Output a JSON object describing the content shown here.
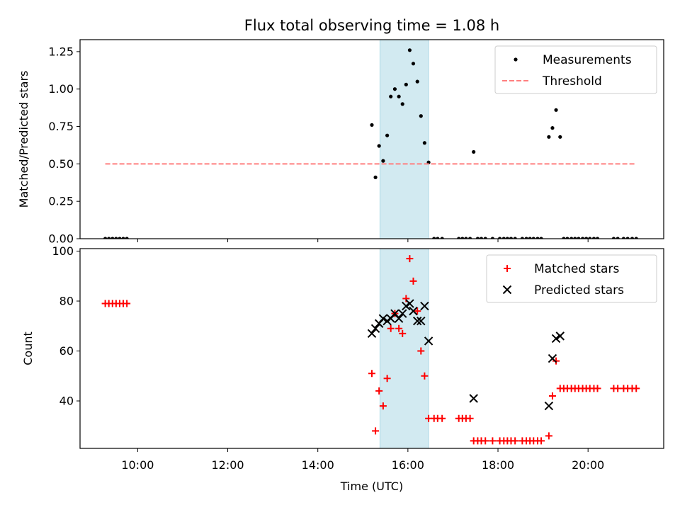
{
  "title": "Flux total observing time = 1.08 h",
  "xlabel": "Time (UTC)",
  "xticks": [
    {
      "h": 10,
      "label": "10:00"
    },
    {
      "h": 12,
      "label": "12:00"
    },
    {
      "h": 14,
      "label": "14:00"
    },
    {
      "h": 16,
      "label": "16:00"
    },
    {
      "h": 18,
      "label": "18:00"
    },
    {
      "h": 20,
      "label": "20:00"
    }
  ],
  "colors": {
    "highlight": "#add8e6",
    "measurement": "#000000",
    "threshold": "#ff7f7f",
    "matched": "#ff0000",
    "predicted": "#000000"
  },
  "chart_data": [
    {
      "type": "scatter",
      "ylabel": "Matched/Predicted stars",
      "ylim": [
        0,
        1.33
      ],
      "yticks": [
        "0.00",
        "0.25",
        "0.50",
        "0.75",
        "1.00",
        "1.25"
      ],
      "legend_placement": "top-right",
      "highlight_span": {
        "x": [
          15.38,
          16.46
        ]
      },
      "series": [
        {
          "name": "Measurements",
          "marker": "dot",
          "x": [
            9.28,
            9.36,
            9.44,
            9.52,
            9.6,
            9.68,
            9.76,
            15.2,
            15.28,
            15.36,
            15.45,
            15.54,
            15.62,
            15.71,
            15.8,
            15.88,
            15.96,
            16.04,
            16.12,
            16.21,
            16.29,
            16.37,
            16.46,
            16.58,
            16.66,
            16.76,
            17.13,
            17.21,
            17.29,
            17.38,
            17.46,
            17.55,
            17.63,
            17.72,
            17.88,
            18.04,
            18.13,
            18.21,
            18.29,
            18.38,
            18.54,
            18.63,
            18.71,
            18.79,
            18.88,
            18.96,
            19.13,
            19.21,
            19.29,
            19.38,
            19.46,
            19.54,
            19.63,
            19.71,
            19.79,
            19.88,
            19.96,
            20.04,
            20.13,
            20.21,
            20.57,
            20.66,
            20.79,
            20.88,
            20.98,
            21.07
          ],
          "y": [
            0,
            0,
            0,
            0,
            0,
            0,
            0,
            0.76,
            0.41,
            0.62,
            0.52,
            0.69,
            0.95,
            1.0,
            0.95,
            0.9,
            1.03,
            1.26,
            1.17,
            1.05,
            0.82,
            0.64,
            0.51,
            0,
            0,
            0,
            0,
            0,
            0,
            0,
            0.58,
            0,
            0,
            0,
            0,
            0,
            0,
            0,
            0,
            0,
            0,
            0,
            0,
            0,
            0,
            0,
            0.68,
            0.74,
            0.86,
            0.68,
            0,
            0,
            0,
            0,
            0,
            0,
            0,
            0,
            0,
            0,
            0,
            0,
            0,
            0,
            0,
            0
          ]
        },
        {
          "name": "Threshold",
          "marker": "dashed-line",
          "x": [
            9.28,
            21.07
          ],
          "y": [
            0.5,
            0.5
          ]
        }
      ]
    },
    {
      "type": "scatter",
      "ylabel": "Count",
      "ylim": [
        21,
        101
      ],
      "yticks": [
        "40",
        "60",
        "80",
        "100"
      ],
      "legend_placement": "top-right",
      "highlight_span": {
        "x": [
          15.38,
          16.46
        ]
      },
      "series": [
        {
          "name": "Matched stars",
          "marker": "plus",
          "x": [
            9.28,
            9.36,
            9.44,
            9.52,
            9.6,
            9.68,
            9.76,
            15.2,
            15.28,
            15.36,
            15.45,
            15.54,
            15.62,
            15.71,
            15.8,
            15.88,
            15.96,
            16.04,
            16.12,
            16.21,
            16.29,
            16.37,
            16.46,
            16.58,
            16.66,
            16.76,
            17.13,
            17.21,
            17.29,
            17.38,
            17.46,
            17.55,
            17.63,
            17.72,
            17.88,
            18.04,
            18.13,
            18.21,
            18.29,
            18.38,
            18.54,
            18.63,
            18.71,
            18.79,
            18.88,
            18.96,
            19.13,
            19.21,
            19.29,
            19.38,
            19.46,
            19.54,
            19.63,
            19.71,
            19.79,
            19.88,
            19.96,
            20.04,
            20.13,
            20.21,
            20.57,
            20.66,
            20.79,
            20.88,
            20.98,
            21.07
          ],
          "y": [
            79,
            79,
            79,
            79,
            79,
            79,
            79,
            51,
            28,
            44,
            38,
            49,
            69,
            75,
            69,
            67,
            81,
            97,
            88,
            76,
            60,
            50,
            33,
            33,
            33,
            33,
            33,
            33,
            33,
            33,
            24,
            24,
            24,
            24,
            24,
            24,
            24,
            24,
            24,
            24,
            24,
            24,
            24,
            24,
            24,
            24,
            26,
            42,
            56,
            45,
            45,
            45,
            45,
            45,
            45,
            45,
            45,
            45,
            45,
            45,
            45,
            45,
            45,
            45,
            45,
            45
          ]
        },
        {
          "name": "Predicted stars",
          "marker": "x",
          "x": [
            15.2,
            15.28,
            15.36,
            15.45,
            15.54,
            15.62,
            15.71,
            15.8,
            15.88,
            15.96,
            16.04,
            16.12,
            16.21,
            16.29,
            16.37,
            16.46,
            17.46,
            19.13,
            19.21,
            19.29,
            19.38
          ],
          "y": [
            67,
            69,
            71,
            73,
            72,
            73,
            75,
            73,
            75,
            78,
            79,
            76,
            72,
            72,
            78,
            64,
            41,
            38,
            57,
            65,
            66
          ]
        }
      ]
    }
  ]
}
